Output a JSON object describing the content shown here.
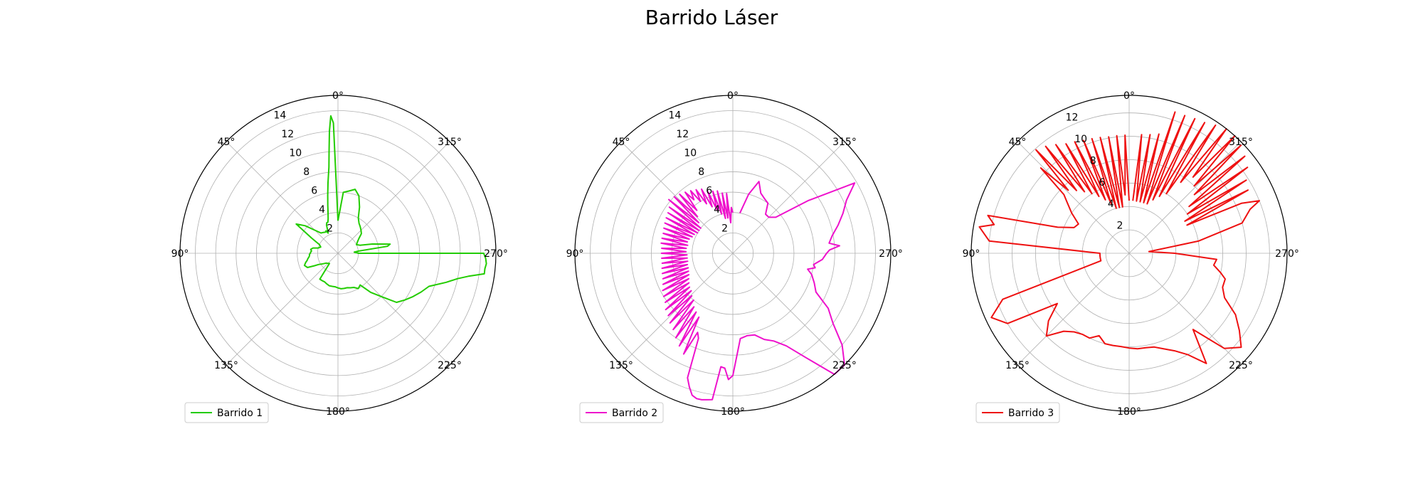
{
  "figure": {
    "title": "Barrido Láser"
  },
  "chart_data": [
    {
      "type": "line",
      "projection": "polar",
      "theta_zero_location": "top",
      "theta_direction": "counterclockwise",
      "theta_tick_labels": [
        "0°",
        "45°",
        "90°",
        "135°",
        "180°",
        "225°",
        "270°",
        "315°"
      ],
      "theta_ticks_deg": [
        0,
        45,
        90,
        135,
        180,
        225,
        270,
        315
      ],
      "r_tick_labels": [
        "2",
        "4",
        "6",
        "8",
        "10",
        "12",
        "14"
      ],
      "r_ticks": [
        2,
        4,
        6,
        8,
        10,
        12,
        14
      ],
      "rlim": [
        0,
        15.5
      ],
      "grid": true,
      "legend_position": "lower-left",
      "color": "#22cc00",
      "series": [
        {
          "name": "Barrido 1",
          "theta_deg": [
            0,
            2,
            3,
            4,
            5,
            6,
            8,
            10,
            12,
            14,
            16,
            18,
            20,
            22,
            24,
            26,
            28,
            30,
            35,
            40,
            45,
            50,
            55,
            60,
            65,
            70,
            75,
            78,
            80,
            82,
            85,
            88,
            90,
            92,
            95,
            98,
            100,
            103,
            106,
            110,
            115,
            118,
            120,
            125,
            130,
            135,
            140,
            145,
            150,
            155,
            160,
            165,
            170,
            175,
            180,
            185,
            190,
            195,
            200,
            205,
            210,
            215,
            220,
            225,
            230,
            235,
            240,
            245,
            250,
            255,
            258,
            260,
            262,
            264,
            266,
            268,
            270,
            270,
            272,
            274,
            276,
            278,
            280,
            285,
            290,
            295,
            300,
            305,
            310,
            315,
            320,
            325,
            330,
            335,
            340,
            345,
            350,
            355,
            0
          ],
          "r": [
            3.2,
            12.8,
            13.5,
            12,
            10,
            8.5,
            7,
            5.8,
            4.8,
            4,
            3.5,
            3.2,
            3.2,
            3,
            2.5,
            2.2,
            2.5,
            2.4,
            2.5,
            2.6,
            3.2,
            4.2,
            5,
            3,
            2,
            1.8,
            2,
            2.5,
            2.6,
            2.7,
            2.6,
            2.7,
            2.7,
            2.8,
            2.8,
            2.9,
            3,
            3.1,
            3.3,
            3.5,
            3.3,
            2.6,
            2.2,
            1.8,
            1.5,
            1.4,
            1.3,
            3.1,
            3.1,
            3.1,
            3.2,
            3.3,
            3.3,
            3.3,
            3.4,
            3.5,
            3.5,
            3.5,
            3.6,
            3.7,
            4,
            3.8,
            5,
            6,
            7.5,
            8,
            8.5,
            9,
            9.5,
            11,
            12,
            13,
            14.5,
            14.5,
            14.6,
            14.5,
            14.3,
            2,
            1.8,
            1.6,
            2,
            4.9,
            5.2,
            3.5,
            2.3,
            2,
            2.2,
            2.5,
            3,
            3.2,
            3.4,
            3.6,
            4,
            5,
            6,
            6.5,
            6.2,
            6,
            3.2
          ]
        }
      ]
    },
    {
      "type": "line",
      "projection": "polar",
      "theta_zero_location": "top",
      "theta_direction": "counterclockwise",
      "theta_tick_labels": [
        "0°",
        "45°",
        "90°",
        "135°",
        "180°",
        "225°",
        "270°",
        "315°"
      ],
      "theta_ticks_deg": [
        0,
        45,
        90,
        135,
        180,
        225,
        270,
        315
      ],
      "r_tick_labels": [
        "2",
        "4",
        "6",
        "8",
        "10",
        "12",
        "14"
      ],
      "r_ticks": [
        2,
        4,
        6,
        8,
        10,
        12,
        14
      ],
      "rlim": [
        0,
        15.5
      ],
      "grid": true,
      "legend_position": "lower-left",
      "color": "#ee11cc",
      "series": [
        {
          "name": "Barrido 2",
          "theta_deg": [
            0,
            2,
            4,
            6,
            8,
            10,
            12,
            14,
            16,
            18,
            20,
            22,
            24,
            26,
            28,
            30,
            32,
            34,
            36,
            38,
            40,
            42,
            44,
            46,
            48,
            50,
            52,
            54,
            56,
            58,
            60,
            62,
            64,
            66,
            68,
            70,
            72,
            74,
            76,
            78,
            80,
            82,
            84,
            86,
            88,
            90,
            92,
            94,
            96,
            98,
            100,
            102,
            104,
            106,
            108,
            110,
            112,
            114,
            116,
            118,
            120,
            122,
            124,
            126,
            128,
            130,
            132,
            134,
            136,
            138,
            140,
            142,
            144,
            146,
            148,
            150,
            152,
            154,
            156,
            158,
            160,
            162,
            164,
            166,
            168,
            170,
            172,
            174,
            176,
            178,
            180,
            185,
            190,
            195,
            200,
            205,
            210,
            215,
            220,
            225,
            230,
            235,
            240,
            245,
            250,
            255,
            258,
            260,
            262,
            266,
            270,
            272,
            274,
            276,
            280,
            285,
            290,
            295,
            300,
            305,
            310,
            315,
            320,
            325,
            330,
            335,
            340,
            345,
            350,
            355,
            0
          ],
          "r": [
            4,
            4.5,
            3,
            5.9,
            3.5,
            6,
            3.5,
            6.3,
            4,
            6.4,
            4.5,
            6.5,
            5,
            7,
            5.5,
            7.2,
            6,
            7.4,
            6.5,
            7.6,
            5.5,
            7.8,
            5,
            8,
            4.5,
            8.2,
            4,
            7.7,
            4,
            7.5,
            4,
            7.4,
            4.2,
            7.3,
            4.3,
            7.2,
            4.5,
            7.1,
            4.6,
            7.1,
            4.5,
            7.1,
            4.6,
            7,
            4.6,
            7,
            4.5,
            7,
            4.5,
            7,
            4.5,
            7.1,
            4.6,
            7.2,
            4.6,
            7.3,
            4.7,
            7.5,
            4.8,
            7.8,
            5,
            8,
            5.2,
            8.2,
            5.4,
            8.6,
            5.5,
            8.8,
            5.8,
            9.2,
            6,
            9.5,
            6.5,
            10,
            6.8,
            10.5,
            7.1,
            11,
            8.5,
            9,
            13,
            13.8,
            14.5,
            14.7,
            14.7,
            14.6,
            14.5,
            11.2,
            11.3,
            12.4,
            12,
            8.4,
            8.2,
            8.3,
            9,
            9.5,
            10.5,
            12.5,
            16.5,
            15.5,
            14,
            12,
            10.8,
            9,
            8.5,
            8,
            7.5,
            8.2,
            8,
            8.8,
            9.2,
            9.5,
            10.5,
            9.5,
            9.9,
            10.7,
            11.5,
            12.3,
            13.8,
            9,
            5.5,
            5,
            5,
            6,
            6.2,
            6.5,
            7.5,
            6,
            4
          ]
        }
      ]
    },
    {
      "type": "line",
      "projection": "polar",
      "theta_zero_location": "top",
      "theta_direction": "counterclockwise",
      "theta_tick_labels": [
        "0°",
        "45°",
        "90°",
        "135°",
        "180°",
        "225°",
        "270°",
        "315°"
      ],
      "theta_ticks_deg": [
        0,
        45,
        90,
        135,
        180,
        225,
        270,
        315
      ],
      "r_tick_labels": [
        "2",
        "4",
        "6",
        "8",
        "10",
        "12"
      ],
      "r_ticks": [
        2,
        4,
        6,
        8,
        10,
        12
      ],
      "rlim": [
        0,
        13.5
      ],
      "grid": true,
      "legend_position": "lower-left",
      "color": "#ee1111",
      "series": [
        {
          "name": "Barrido 3",
          "theta_deg": [
            0,
            2,
            4,
            6,
            8,
            10,
            12,
            14,
            16,
            18,
            20,
            22,
            24,
            26,
            28,
            30,
            32,
            34,
            36,
            38,
            40,
            42,
            44,
            46,
            48,
            50,
            55,
            60,
            65,
            70,
            75,
            78,
            80,
            85,
            90,
            95,
            100,
            105,
            110,
            115,
            120,
            125,
            130,
            135,
            140,
            145,
            150,
            155,
            160,
            165,
            170,
            175,
            180,
            185,
            190,
            195,
            200,
            205,
            210,
            215,
            220,
            225,
            230,
            235,
            240,
            245,
            250,
            255,
            258,
            262,
            266,
            270,
            275,
            280,
            285,
            290,
            292,
            294,
            296,
            298,
            300,
            302,
            304,
            306,
            308,
            310,
            312,
            314,
            316,
            318,
            320,
            322,
            324,
            326,
            328,
            330,
            332,
            334,
            336,
            338,
            340,
            342,
            344,
            346,
            348,
            350,
            352,
            354,
            356,
            358,
            0
          ],
          "r": [
            4.5,
            10.1,
            5,
            10.1,
            4,
            10.1,
            4,
            10.2,
            4,
            10.3,
            4.5,
            10.4,
            5,
            10.6,
            5.5,
            10.8,
            6,
            11.2,
            6.5,
            11.6,
            7,
            11.9,
            7.5,
            10.5,
            7.5,
            7,
            6,
            5,
            5.2,
            6.5,
            12.5,
            11.8,
            13,
            12,
            2.5,
            2.5,
            2.5,
            2.5,
            11.5,
            13,
            12,
            7.5,
            9,
            10,
            8.7,
            8.2,
            8,
            8,
            7.5,
            8,
            8,
            8,
            8.1,
            8.2,
            8.2,
            8.3,
            8.7,
            9.2,
            10,
            11.5,
            8.5,
            11.5,
            12.5,
            11.5,
            10.5,
            9,
            8.5,
            8.5,
            8,
            7.3,
            7.5,
            3.9,
            1.7,
            6,
            10,
            11,
            12,
            10.5,
            5.5,
            11.5,
            5.5,
            11.8,
            6,
            12.5,
            6.5,
            12.9,
            7.5,
            13.3,
            8,
            13.7,
            8.5,
            13.7,
            7.5,
            13.2,
            6,
            12.9,
            5.5,
            12.8,
            5,
            12.7,
            4.5,
            12.7,
            4.5,
            10.5,
            4.5,
            10.3,
            4.5,
            10.2,
            4.5
          ]
        }
      ]
    }
  ]
}
